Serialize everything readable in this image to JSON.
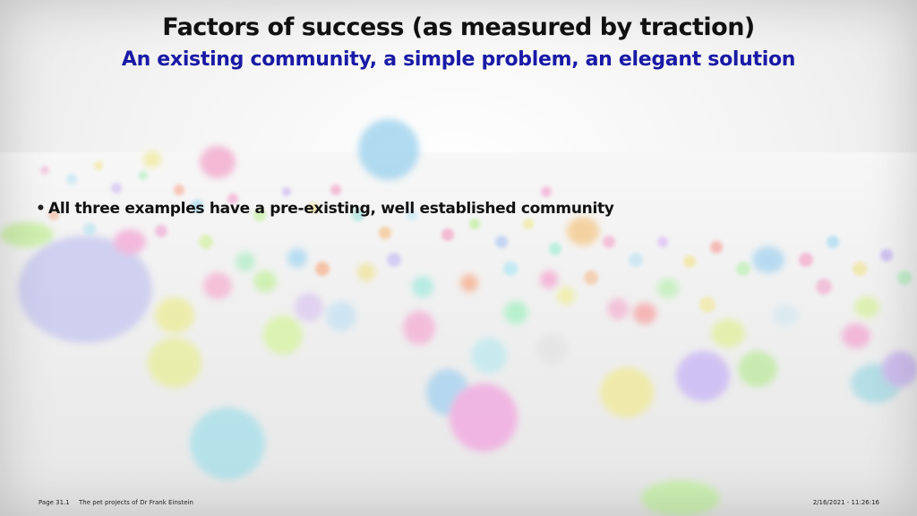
{
  "slide": {
    "title": "Factors of success (as measured by traction)",
    "subtitle": "An existing community, a simple problem, an elegant solution",
    "bullets": [
      "All three examples have a pre-existing, well established community"
    ],
    "footer": {
      "page": "Page 31.1",
      "deck_title": "The pet projects of Dr Frank Einstein",
      "datetime": "2/16/2021 - 11:26:16"
    }
  }
}
